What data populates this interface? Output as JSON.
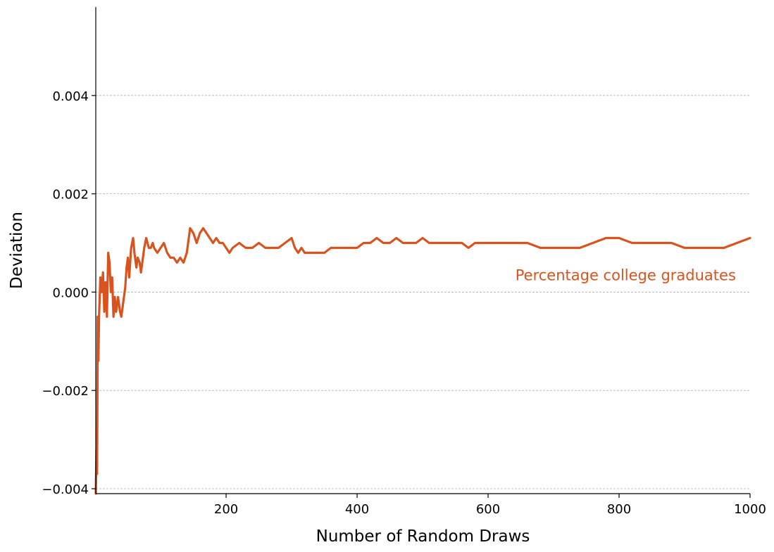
{
  "chart_data": {
    "type": "line",
    "xlabel": "Number of Random Draws",
    "ylabel": "Deviation",
    "xlim": [
      1,
      1000
    ],
    "ylim": [
      -0.0041,
      0.0058
    ],
    "xticks": [
      200,
      400,
      600,
      800,
      1000
    ],
    "xtick_labels": [
      "200",
      "400",
      "600",
      "800",
      "1000"
    ],
    "yticks": [
      -0.004,
      -0.002,
      0.0,
      0.002,
      0.004
    ],
    "ytick_labels": [
      "−0.004",
      "−0.002",
      "0.000",
      "0.002",
      "0.004"
    ],
    "grid": "horizontal-dashed",
    "series": [
      {
        "name": "Percentage college graduates",
        "color": "#d9531e",
        "x": [
          1,
          2,
          3,
          4,
          5,
          6,
          8,
          10,
          12,
          14,
          16,
          18,
          20,
          22,
          24,
          26,
          28,
          30,
          32,
          35,
          38,
          40,
          43,
          46,
          48,
          50,
          52,
          55,
          58,
          60,
          63,
          65,
          68,
          70,
          72,
          75,
          78,
          80,
          82,
          85,
          88,
          90,
          95,
          100,
          105,
          110,
          115,
          120,
          125,
          130,
          135,
          140,
          145,
          150,
          155,
          160,
          165,
          170,
          175,
          180,
          185,
          190,
          195,
          200,
          205,
          210,
          220,
          230,
          240,
          250,
          260,
          270,
          280,
          290,
          300,
          305,
          310,
          315,
          320,
          330,
          340,
          350,
          360,
          370,
          380,
          390,
          400,
          410,
          420,
          430,
          440,
          450,
          460,
          470,
          480,
          490,
          500,
          510,
          520,
          530,
          540,
          550,
          560,
          570,
          580,
          590,
          600,
          620,
          640,
          650,
          660,
          680,
          700,
          720,
          740,
          760,
          780,
          800,
          820,
          840,
          860,
          880,
          900,
          920,
          940,
          960,
          980,
          1000
        ],
        "y": [
          -0.0041,
          -0.0032,
          -0.0037,
          -0.0005,
          -0.0014,
          -0.0005,
          0.0003,
          0.0,
          0.0004,
          -0.0004,
          0.0002,
          -0.0005,
          0.0008,
          0.0006,
          0.0,
          0.0003,
          -0.0005,
          -0.0001,
          -0.0004,
          -0.0001,
          -0.0004,
          -0.0005,
          -0.0002,
          0.0001,
          0.0005,
          0.0007,
          0.0003,
          0.0009,
          0.0011,
          0.0008,
          0.0005,
          0.0007,
          0.0006,
          0.0004,
          0.0006,
          0.0009,
          0.0011,
          0.001,
          0.0009,
          0.0009,
          0.001,
          0.0009,
          0.0008,
          0.0009,
          0.001,
          0.0008,
          0.0007,
          0.0007,
          0.0006,
          0.0007,
          0.0006,
          0.0008,
          0.0013,
          0.0012,
          0.001,
          0.0012,
          0.0013,
          0.0012,
          0.0011,
          0.001,
          0.0011,
          0.001,
          0.001,
          0.0009,
          0.0008,
          0.0009,
          0.001,
          0.0009,
          0.0009,
          0.001,
          0.0009,
          0.0009,
          0.0009,
          0.001,
          0.0011,
          0.0009,
          0.0008,
          0.0009,
          0.0008,
          0.0008,
          0.0008,
          0.0008,
          0.0009,
          0.0009,
          0.0009,
          0.0009,
          0.0009,
          0.001,
          0.001,
          0.0011,
          0.001,
          0.001,
          0.0011,
          0.001,
          0.001,
          0.001,
          0.0011,
          0.001,
          0.001,
          0.001,
          0.001,
          0.001,
          0.001,
          0.0009,
          0.001,
          0.001,
          0.001,
          0.001,
          0.001,
          0.001,
          0.001,
          0.0009,
          0.0009,
          0.0009,
          0.0009,
          0.001,
          0.0011,
          0.0011,
          0.001,
          0.001,
          0.001,
          0.001,
          0.0009,
          0.0009,
          0.0009,
          0.0009,
          0.001,
          0.0011
        ]
      }
    ],
    "annotations": [
      {
        "text": "Percentage college graduates",
        "x": 810,
        "y": 0.00024,
        "color": "#d9531e"
      }
    ]
  }
}
